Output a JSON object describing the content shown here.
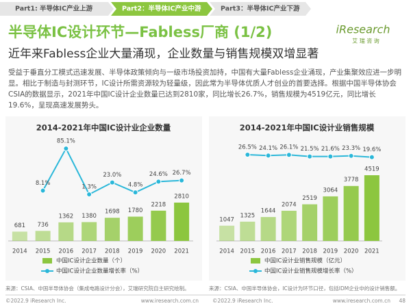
{
  "tabs": [
    "Part1: 半导体IC产业上游",
    "Part2：半导体IC产业中游",
    "Part3：半导体IC产业下游"
  ],
  "logo": {
    "name": "iResearch",
    "tagline": "艾 瑞 咨 询"
  },
  "title": "半导体IC设计环节—Fabless厂商 (1/2)",
  "subtitle": "近年来Fabless企业大量涌现，企业数量与销售规模双增显著",
  "body": "受益于垂直分工模式迅速发展、半导体政策倾向与一级市场投资加持，中国有大量Fabless企业涌现，产业集聚效应进一步明显。相比于制造与封测环节，IC设计所需资源较为轻量级，因此常为半导体优质人才创业的首要选择。根据中国半导体协会CSIA的数据显示，2021年中国IC设计企业数量已达到2810家，同比增长26.7%，销售规模为4519亿元，同比增长19.6%，呈现高速发展势头。",
  "chart_data": [
    {
      "type": "bar",
      "title": "2014-2021年中国IC设计业企业数量",
      "categories": [
        "2014",
        "2015",
        "2016",
        "2017",
        "2018",
        "2019",
        "2020",
        "2021"
      ],
      "series": [
        {
          "name": "中国IC设计企业数量（个）",
          "color": "#8cc63f",
          "values": [
            681,
            736,
            1362,
            1380,
            1698,
            1780,
            2218,
            2810
          ]
        },
        {
          "name": "中国IC设计企业数量增长率（%）",
          "color": "#2ab7d9",
          "type": "line",
          "axis": "y2",
          "values": [
            null,
            8.1,
            85.1,
            1.3,
            23.0,
            4.8,
            24.6,
            26.7
          ],
          "value_labels": [
            null,
            "8.1%",
            "85.1%",
            "1.3%",
            "23.0%",
            "4.8%",
            "24.6%",
            "26.7%"
          ]
        }
      ]
    },
    {
      "type": "bar",
      "title": "2014-2021年中国IC设计业销售规模",
      "categories": [
        "2014",
        "2015",
        "2016",
        "2017",
        "2018",
        "2019",
        "2020",
        "2021"
      ],
      "series": [
        {
          "name": "中国IC设计业销售规模（亿元）",
          "color": "#8cc63f",
          "values": [
            1047,
            1325,
            1644,
            2074,
            2519,
            3064,
            3778,
            4519
          ]
        },
        {
          "name": "中国IC设计业销售规模增长率（%）",
          "color": "#2ab7d9",
          "type": "line",
          "axis": "y2",
          "values": [
            null,
            26.5,
            24.1,
            26.1,
            21.5,
            21.6,
            23.3,
            19.6
          ],
          "value_labels": [
            null,
            "26.5%",
            "24.1%",
            "26.1%",
            "21.5%",
            "21.6%",
            "23.3%",
            "19.6%"
          ]
        }
      ]
    }
  ],
  "sources": [
    "来源：CSIA、中国半导体协会（集成电路设计分会），艾瑞研究院自主研究绘制。",
    "来源：CSIA、中国半导体协会，IC设计为环节口径，包括IDM企业中的设计销售额。"
  ],
  "footer": {
    "copyright": "©2022.9 iResearch Inc.",
    "website": "www.iresearch.com.cn",
    "page": "48"
  }
}
